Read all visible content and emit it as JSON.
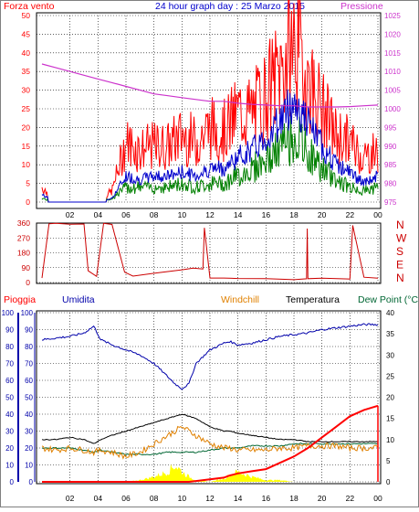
{
  "header": {
    "left_title": "Forza vento",
    "center_title": "24 hour graph day : 25 Marzo 2015",
    "right_title": "Pressione"
  },
  "colors": {
    "wind": "#ff0000",
    "gust": "#ff0000",
    "avg_wind": "#0000cc",
    "wind_green": "#008000",
    "pressure": "#cc33cc",
    "direction": "#cc0000",
    "rain": "#ff0000",
    "humidity": "#0000aa",
    "windchill": "#e08000",
    "temperature": "#000000",
    "dewpoint": "#006633",
    "rain_rate": "#ffff00",
    "grid": "#000000",
    "frame": "#000000"
  },
  "hour_labels": [
    "02",
    "04",
    "06",
    "08",
    "10",
    "12",
    "14",
    "16",
    "18",
    "20",
    "22",
    "00"
  ],
  "chart_data": [
    {
      "name": "wind",
      "type": "line",
      "y_left": {
        "label": "Forza vento",
        "ticks": [
          0,
          5,
          10,
          15,
          20,
          25,
          30,
          35,
          40,
          45,
          50
        ],
        "lim": [
          0,
          50
        ]
      },
      "y_right": {
        "label": "Pressione",
        "ticks": [
          975,
          980,
          985,
          990,
          995,
          1000,
          1005,
          1010,
          1015,
          1020,
          1025
        ],
        "lim": [
          975,
          1025
        ]
      },
      "x_hours": [
        0,
        1,
        2,
        3,
        4,
        5,
        6,
        7,
        8,
        9,
        10,
        11,
        12,
        13,
        14,
        15,
        16,
        17,
        18,
        19,
        20,
        21,
        22,
        23,
        24
      ],
      "series": [
        {
          "key": "gust",
          "values": [
            4,
            0,
            0,
            0,
            0,
            3,
            16,
            14,
            15,
            15,
            18,
            16,
            20,
            19,
            24,
            24,
            29,
            35,
            43,
            33,
            25,
            18,
            16,
            12,
            14
          ]
        },
        {
          "key": "avg_wind",
          "values": [
            2,
            0,
            0,
            0,
            0,
            1,
            7,
            6,
            7,
            7,
            8,
            7,
            9,
            9,
            12,
            14,
            17,
            22,
            27,
            21,
            15,
            10,
            8,
            5,
            7
          ]
        },
        {
          "key": "wind_green",
          "values": [
            1,
            0,
            0,
            0,
            0,
            1,
            4,
            4,
            4,
            4,
            5,
            4,
            5,
            5,
            7,
            9,
            11,
            14,
            18,
            13,
            9,
            6,
            4,
            3,
            4
          ]
        },
        {
          "key": "pressure",
          "values": [
            1012,
            1011,
            1010,
            1009,
            1008,
            1007,
            1006,
            1005,
            1004,
            1003.5,
            1003,
            1002.5,
            1002,
            1002,
            1001.5,
            1001.2,
            1001,
            1000.8,
            1000.8,
            1000.5,
            1000.5,
            1000.5,
            1000.6,
            1000.8,
            1001
          ]
        }
      ]
    },
    {
      "name": "direction",
      "type": "line",
      "y_left": {
        "ticks": [
          0,
          90,
          180,
          270,
          360
        ],
        "lim": [
          0,
          360
        ]
      },
      "y_right": {
        "ticks": [
          "N",
          "W",
          "S",
          "E",
          "N"
        ]
      },
      "x_hours": [
        0,
        0.5,
        1,
        2,
        3,
        3.3,
        3.9,
        4.4,
        5,
        5.9,
        6.5,
        8,
        10,
        10.8,
        11.5,
        11.6,
        12,
        13,
        14,
        16,
        18,
        18.9,
        18.95,
        19,
        20,
        22,
        22.2,
        23,
        24
      ],
      "series": [
        {
          "key": "direction",
          "values": [
            25,
            355,
            355,
            355,
            355,
            70,
            35,
            355,
            355,
            60,
            40,
            55,
            75,
            90,
            80,
            335,
            25,
            25,
            28,
            22,
            20,
            25,
            330,
            25,
            22,
            20,
            345,
            30,
            25
          ]
        }
      ]
    },
    {
      "name": "weather",
      "type": "line",
      "legend": [
        "Pioggia",
        "Umidita",
        "Windchill",
        "Temperatura",
        "Dew Point (°C"
      ],
      "y_left": {
        "label": "Pioggia",
        "ticks": [
          0,
          10,
          20,
          30,
          40,
          50,
          60,
          70,
          80,
          90,
          100
        ],
        "lim": [
          0,
          100
        ]
      },
      "y_right": {
        "ticks": [
          0,
          5,
          10,
          15,
          20,
          25,
          30,
          35,
          40
        ],
        "lim": [
          0,
          40
        ]
      },
      "x_hours": [
        0,
        1,
        2,
        3,
        3.7,
        4.2,
        5,
        6,
        7,
        8,
        9,
        9.5,
        10,
        10.5,
        11,
        12,
        13,
        13.4,
        14,
        15,
        16,
        17,
        18,
        19,
        20,
        21,
        22,
        23,
        24
      ],
      "series": [
        {
          "key": "humidity",
          "values": [
            84,
            85,
            86,
            88,
            92,
            84,
            81,
            78,
            75,
            70,
            62,
            58,
            55,
            58,
            70,
            78,
            82,
            83,
            81,
            82,
            84,
            86,
            87,
            88,
            90,
            91,
            92,
            93,
            93
          ]
        },
        {
          "key": "temperature",
          "values": [
            10,
            10,
            10.5,
            10,
            9,
            10,
            11,
            12,
            13,
            14,
            15,
            15.5,
            16,
            15.5,
            15,
            13,
            12,
            12,
            11.5,
            11,
            10.5,
            10,
            10,
            9.5,
            9.5,
            9.5,
            9.5,
            9.5,
            9.5
          ]
        },
        {
          "key": "windchill",
          "values": [
            8,
            7.5,
            8,
            7.5,
            7,
            7.5,
            7,
            6,
            7,
            9,
            11,
            12,
            13,
            12,
            11,
            9,
            8,
            8,
            7.5,
            7.5,
            7.5,
            8,
            8,
            8.5,
            8.5,
            8.5,
            8,
            8,
            8
          ]
        },
        {
          "key": "dewpoint",
          "values": [
            8,
            8,
            8,
            7.5,
            7,
            7.5,
            7,
            6.5,
            6.5,
            6.5,
            7,
            7,
            7,
            7,
            7,
            7.5,
            8,
            8,
            8,
            8.5,
            8.5,
            8.5,
            9,
            9,
            9,
            9,
            9,
            9,
            9
          ]
        },
        {
          "key": "rain",
          "values": [
            0,
            0,
            0,
            0,
            0,
            0,
            0,
            0,
            0,
            0,
            0,
            0,
            0,
            0,
            0.2,
            0.6,
            1,
            1.5,
            2,
            2.5,
            3,
            4.5,
            6,
            8,
            10.5,
            13,
            15.5,
            17,
            18
          ]
        },
        {
          "key": "rain_rate",
          "values": [
            0,
            0,
            0,
            0,
            0,
            0,
            0,
            0,
            1,
            3,
            6,
            10,
            6,
            3,
            1,
            0,
            2,
            4,
            6,
            3,
            1,
            1,
            0,
            0,
            0,
            0,
            0,
            0,
            0
          ]
        }
      ]
    }
  ]
}
